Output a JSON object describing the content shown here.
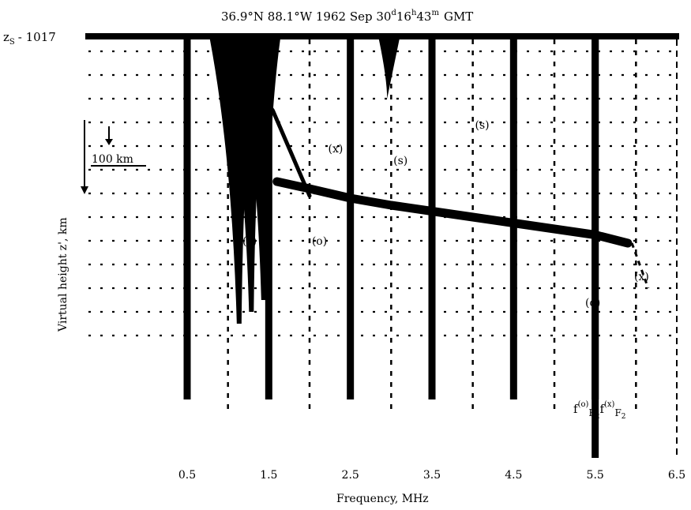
{
  "chart_data": {
    "type": "scatter",
    "title": "36.9°N  88.1°W  1962 Sep 30",
    "title_day_sup": "d",
    "title_hour": "16",
    "title_hour_sup": "h",
    "title_min": "43",
    "title_min_sup": "m",
    "title_tz": "GMT",
    "xlabel": "Frequency, MHz",
    "ylabel": "Virtual height z', km",
    "xlim": [
      0,
      6.5
    ],
    "xticks": [
      "0.5",
      "1.5",
      "2.5",
      "3.5",
      "4.5",
      "5.5",
      "6.5"
    ],
    "xtick_values": [
      0.5,
      1.5,
      2.5,
      3.5,
      4.5,
      5.5,
      6.5
    ],
    "thick_lines_x": [
      0.5,
      1.5,
      2.5,
      3.5,
      4.5,
      5.5
    ],
    "zs_label": "z",
    "zs_sub": "S",
    "zs_value": "- 1017",
    "scale_label": "100 km",
    "trace_labels": [
      {
        "text": "(s)",
        "f": 1.1,
        "row": 1.0
      },
      {
        "text": "(x)",
        "f": 2.15,
        "row": 0.7
      },
      {
        "text": "(s)",
        "f": 2.95,
        "row": 1.2
      },
      {
        "text": "(s)",
        "f": 3.95,
        "row": -0.3
      },
      {
        "text": "(s)",
        "f": 1.1,
        "row": 4.6
      },
      {
        "text": "(o)",
        "f": 1.95,
        "row": 4.6
      },
      {
        "text": "(x)",
        "f": 5.9,
        "row": 6.1
      },
      {
        "text": "(o)",
        "f": 5.3,
        "row": 7.2
      }
    ],
    "critical_freq_label": "f(o)F2 f(x)F2",
    "critical_freq_o_sup": "(o)",
    "critical_freq_x_sup": "(x)",
    "critical_freq_sub": "F",
    "critical_freq_sub2": "2",
    "series": [
      {
        "trace": "o",
        "points": [
          [
            1.6,
            4.0
          ],
          [
            2.0,
            4.3
          ],
          [
            2.5,
            4.7
          ],
          [
            3.0,
            5.0
          ],
          [
            3.5,
            5.25
          ],
          [
            4.0,
            5.5
          ],
          [
            4.5,
            5.75
          ],
          [
            5.0,
            6.0
          ],
          [
            5.5,
            6.25
          ],
          [
            5.9,
            6.6
          ]
        ]
      },
      {
        "trace": "x",
        "points": [
          [
            1.35,
            0.0
          ],
          [
            1.55,
            1.0
          ],
          [
            1.7,
            2.2
          ],
          [
            1.85,
            3.4
          ],
          [
            2.0,
            4.6
          ]
        ]
      }
    ]
  }
}
